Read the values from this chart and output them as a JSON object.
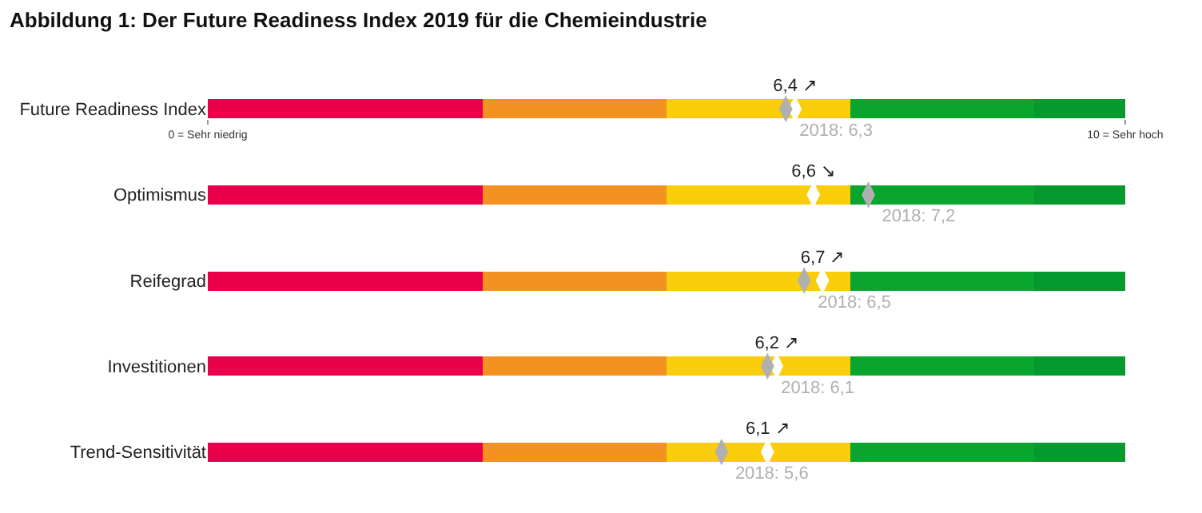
{
  "chart_data": {
    "type": "bar",
    "orientation": "horizontal",
    "stacked": true,
    "title": "Abbildung 1: Der Future Readiness Index 2019 für die Chemieindustrie",
    "categories": [
      "Future Readiness Index",
      "Optimismus",
      "Reifegrad",
      "Investitionen",
      "Trend-Sensitivität"
    ],
    "xlim": [
      0,
      10
    ],
    "xticks": [
      {
        "value": 0,
        "label": "0 = Sehr niedrig"
      },
      {
        "value": 10,
        "label": "10 = Sehr hoch"
      }
    ],
    "series": [
      {
        "color": "#e8004c",
        "values": [
          3,
          3,
          3,
          3,
          3
        ]
      },
      {
        "color": "#f39220",
        "values": [
          2,
          2,
          2,
          2,
          2
        ]
      },
      {
        "color": "#f9cd0a",
        "values": [
          2,
          2,
          2,
          2,
          2
        ]
      },
      {
        "color": "#0aa52f",
        "values": [
          2,
          2,
          2,
          2,
          2
        ]
      },
      {
        "color": "#05992e",
        "values": [
          1,
          1,
          1,
          1,
          1
        ]
      },
      {
        "type": "scatter",
        "color": "#ffffff",
        "values": [
          6.4,
          6.6,
          6.7,
          6.2,
          6.1
        ],
        "value_labels": [
          "6,4 ↗",
          "6,6 ↘",
          "6,7 ↗",
          "6,2 ↗",
          "6,1 ↗"
        ]
      },
      {
        "type": "scatter",
        "color": "#b0b0b0",
        "values": [
          6.3,
          7.2,
          6.5,
          6.1,
          5.6
        ],
        "value_labels": [
          "2018: 6,3",
          "2018: 7,2",
          "2018: 6,5",
          "2018: 6,1",
          "2018: 5,6"
        ]
      }
    ]
  }
}
